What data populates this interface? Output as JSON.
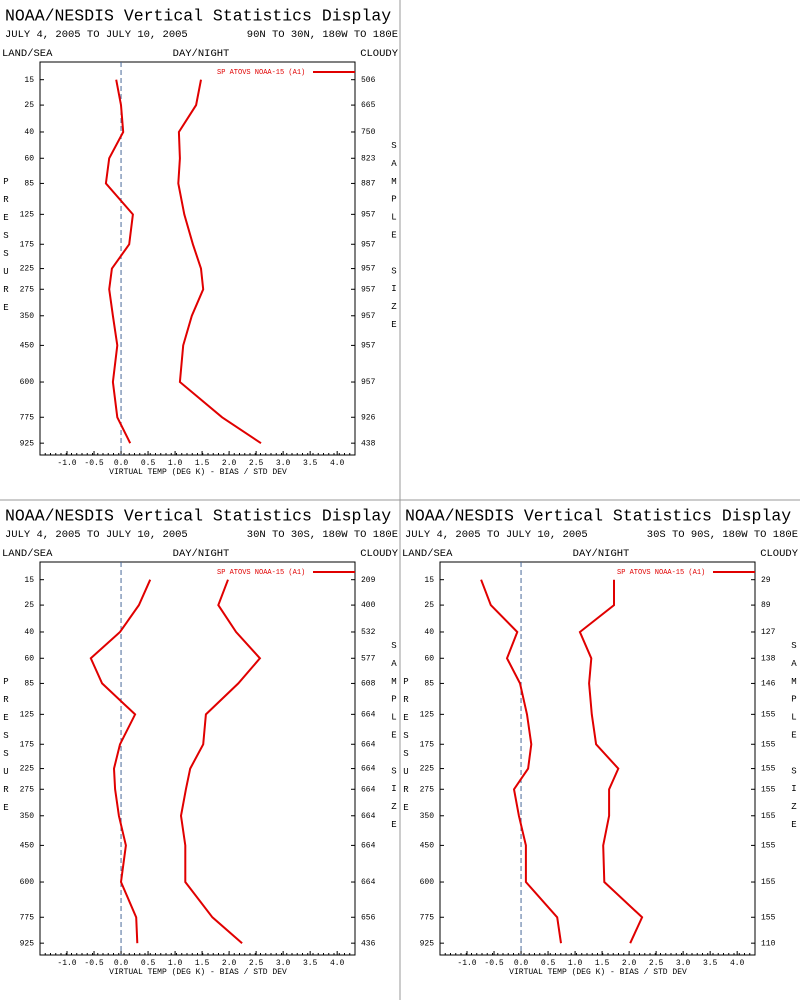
{
  "chart_data": [
    {
      "type": "line",
      "title": "NOAA/NESDIS Vertical Statistics Display",
      "date_range": "JULY 4, 2005 TO JULY 10, 2005",
      "region": "90N TO 30N, 180W TO 180E",
      "land_sea": "LAND/SEA",
      "day_night": "DAY/NIGHT",
      "cloudy": "CLOUDY",
      "y_label": "PRESSURE",
      "y2_label": "SAMPLE SIZE",
      "x_label": "VIRTUAL TEMP (DEG K) - BIAS / STD DEV",
      "y": [
        15,
        25,
        40,
        60,
        85,
        125,
        175,
        225,
        275,
        350,
        450,
        600,
        775,
        925
      ],
      "sample_sizes": [
        506,
        665,
        750,
        823,
        887,
        957,
        957,
        957,
        957,
        957,
        957,
        957,
        926,
        438
      ],
      "ylim": [
        10,
        1000
      ],
      "xlim": [
        -1.5,
        4.33
      ],
      "xticks": [
        {
          "value": -1,
          "label": "-1.0"
        },
        {
          "value": -0.5,
          "label": "-0.5"
        },
        {
          "value": 0,
          "label": "0.0"
        },
        0.5,
        {
          "value": 1,
          "label": "1.0"
        },
        1.5,
        {
          "value": 2,
          "label": "2.0"
        },
        2.5,
        {
          "value": 3,
          "label": "3.0"
        },
        3.5,
        {
          "value": 4,
          "label": "4.0"
        }
      ],
      "series": [
        {
          "name": "SP ATOVS NOAA-15 (A1)",
          "color": "#e00000",
          "values": [
            -0.09,
            0.0,
            0.04,
            -0.22,
            -0.28,
            0.22,
            0.15,
            -0.17,
            -0.22,
            -0.15,
            -0.07,
            -0.15,
            -0.07,
            0.17
          ]
        },
        {
          "color": "#e00000",
          "values": [
            1.48,
            1.39,
            1.07,
            1.09,
            1.06,
            1.17,
            1.33,
            1.48,
            1.52,
            1.31,
            1.15,
            1.09,
            1.87,
            2.59
          ]
        }
      ]
    },
    {
      "type": "line",
      "title": "NOAA/NESDIS Vertical Statistics Display",
      "date_range": "JULY 4, 2005 TO JULY 10, 2005",
      "region": "30N TO 30S, 180W TO 180E",
      "land_sea": "LAND/SEA",
      "day_night": "DAY/NIGHT",
      "cloudy": "CLOUDY",
      "y_label": "PRESSURE",
      "y2_label": "SAMPLE SIZE",
      "x_label": "VIRTUAL TEMP (DEG K) - BIAS / STD DEV",
      "y": [
        15,
        25,
        40,
        60,
        85,
        125,
        175,
        225,
        275,
        350,
        450,
        600,
        775,
        925
      ],
      "sample_sizes": [
        209,
        400,
        532,
        577,
        608,
        664,
        664,
        664,
        664,
        664,
        664,
        664,
        656,
        436
      ],
      "ylim": [
        10,
        1000
      ],
      "xlim": [
        -1.5,
        4.33
      ],
      "xticks": [
        {
          "value": -1,
          "label": "-1.0"
        },
        {
          "value": -0.5,
          "label": "-0.5"
        },
        {
          "value": 0,
          "label": "0.0"
        },
        0.5,
        {
          "value": 1,
          "label": "1.0"
        },
        1.5,
        {
          "value": 2,
          "label": "2.0"
        },
        2.5,
        {
          "value": 3,
          "label": "3.0"
        },
        3.5,
        {
          "value": 4,
          "label": "4.0"
        }
      ],
      "series": [
        {
          "name": "SP ATOVS NOAA-15 (A1)",
          "color": "#e00000",
          "values": [
            0.54,
            0.33,
            -0.02,
            -0.56,
            -0.35,
            0.26,
            -0.02,
            -0.13,
            -0.11,
            -0.04,
            0.09,
            0.0,
            0.28,
            0.3
          ]
        },
        {
          "color": "#e00000",
          "values": [
            1.98,
            1.8,
            2.13,
            2.57,
            2.17,
            1.57,
            1.52,
            1.28,
            1.2,
            1.11,
            1.19,
            1.19,
            1.69,
            2.24
          ]
        }
      ]
    },
    {
      "type": "line",
      "title": "NOAA/NESDIS Vertical Statistics Display",
      "date_range": "JULY 4, 2005 TO JULY 10, 2005",
      "region": "30S TO 90S, 180W TO 180E",
      "land_sea": "LAND/SEA",
      "day_night": "DAY/NIGHT",
      "cloudy": "CLOUDY",
      "y_label": "PRESSURE",
      "y2_label": "SAMPLE SIZE",
      "x_label": "VIRTUAL TEMP (DEG K) - BIAS / STD DEV",
      "y": [
        15,
        25,
        40,
        60,
        85,
        125,
        175,
        225,
        275,
        350,
        450,
        600,
        775,
        925
      ],
      "sample_sizes": [
        29,
        89,
        127,
        138,
        146,
        155,
        155,
        155,
        155,
        155,
        155,
        155,
        155,
        110
      ],
      "ylim": [
        10,
        1000
      ],
      "xlim": [
        -1.5,
        4.33
      ],
      "xticks": [
        {
          "value": -1,
          "label": "-1.0"
        },
        {
          "value": -0.5,
          "label": "-0.5"
        },
        {
          "value": 0,
          "label": "0.0"
        },
        0.5,
        {
          "value": 1,
          "label": "1.0"
        },
        1.5,
        {
          "value": 2,
          "label": "2.0"
        },
        2.5,
        {
          "value": 3,
          "label": "3.0"
        },
        3.5,
        {
          "value": 4,
          "label": "4.0"
        }
      ],
      "series": [
        {
          "name": "SP ATOVS NOAA-15 (A1)",
          "color": "#e00000",
          "values": [
            -0.74,
            -0.56,
            -0.07,
            -0.26,
            -0.02,
            0.11,
            0.19,
            0.13,
            -0.13,
            -0.04,
            0.09,
            0.09,
            0.67,
            0.74
          ]
        },
        {
          "color": "#e00000",
          "values": [
            1.72,
            1.72,
            1.09,
            1.3,
            1.26,
            1.31,
            1.39,
            1.8,
            1.63,
            1.63,
            1.52,
            1.54,
            2.24,
            2.02
          ]
        }
      ]
    }
  ]
}
